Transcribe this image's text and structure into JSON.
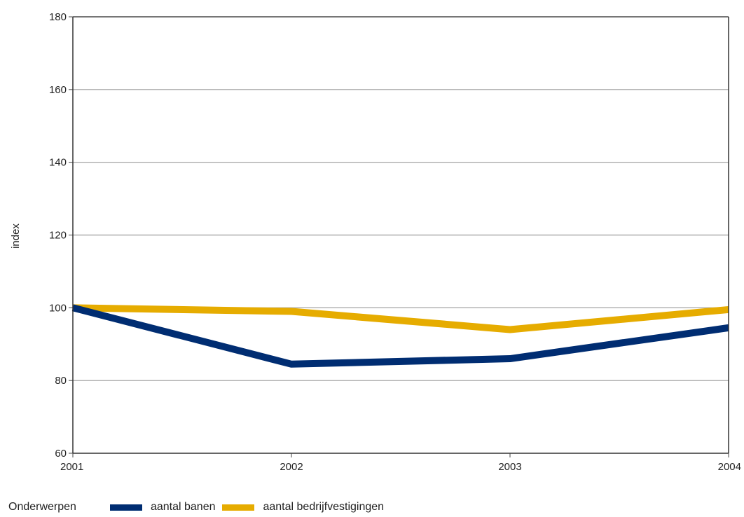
{
  "chart_data": {
    "type": "line",
    "title": "",
    "xlabel": "",
    "ylabel": "index",
    "x": [
      "2001",
      "2002",
      "2003",
      "2004"
    ],
    "ylim": [
      60,
      180
    ],
    "yticks": [
      60,
      80,
      100,
      120,
      140,
      160,
      180
    ],
    "grid": true,
    "legend_position": "bottom",
    "legend_title": "Onderwerpen",
    "series": [
      {
        "name": "aantal banen",
        "color": "#002d72",
        "values": [
          100,
          84.5,
          86,
          94.5
        ]
      },
      {
        "name": "aantal bedrijfvestigingen",
        "color": "#e6ac00",
        "values": [
          100,
          99,
          94,
          99.5
        ]
      }
    ]
  }
}
